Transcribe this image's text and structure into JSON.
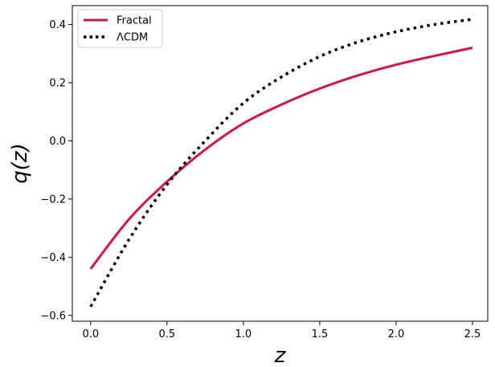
{
  "chart_data": {
    "type": "line",
    "xlabel": "z",
    "ylabel": "q(z)",
    "xlim": [
      -0.12,
      2.6
    ],
    "ylim": [
      -0.62,
      0.465
    ],
    "xticks": [
      0.0,
      0.5,
      1.0,
      1.5,
      2.0,
      2.5
    ],
    "xtick_labels": [
      "0.0",
      "0.5",
      "1.0",
      "1.5",
      "2.0",
      "2.5"
    ],
    "yticks": [
      -0.6,
      -0.4,
      -0.2,
      0.0,
      0.2,
      0.4
    ],
    "ytick_labels": [
      "−0.6",
      "−0.4",
      "−0.2",
      "0.0",
      "0.2",
      "0.4"
    ],
    "grid": false,
    "legend_position": "top-left",
    "series": [
      {
        "name": "Fractal",
        "color": "#d6163e",
        "style": "solid",
        "x": [
          0.0,
          0.25,
          0.5,
          0.75,
          1.0,
          1.25,
          1.5,
          1.75,
          2.0,
          2.25,
          2.5
        ],
        "y": [
          -0.44,
          -0.27,
          -0.14,
          -0.03,
          0.06,
          0.125,
          0.18,
          0.225,
          0.262,
          0.292,
          0.32
        ]
      },
      {
        "name": "ΛCDM",
        "color": "#000000",
        "style": "dotted",
        "x": [
          0.0,
          0.25,
          0.5,
          0.75,
          1.0,
          1.25,
          1.5,
          1.75,
          2.0,
          2.25,
          2.5
        ],
        "y": [
          -0.57,
          -0.34,
          -0.15,
          0.0,
          0.13,
          0.22,
          0.29,
          0.34,
          0.375,
          0.4,
          0.418
        ]
      }
    ]
  }
}
